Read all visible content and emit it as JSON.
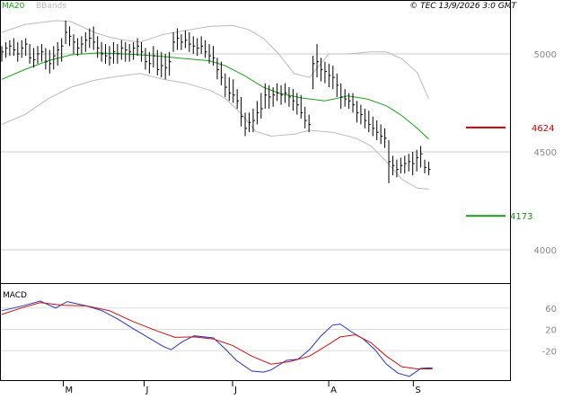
{
  "header": {
    "legend_ma": "MA20",
    "legend_bb": "BBands",
    "copyright": "© TEC 13/9/2026 3:0 GMT"
  },
  "macd_panel": {
    "label": "MACD"
  },
  "levels": [
    {
      "label": "4624",
      "value": 4624,
      "color": "#cc0000"
    },
    {
      "label": "4173",
      "value": 4173,
      "color": "#1a9a1a"
    }
  ],
  "chart_data": [
    {
      "type": "line",
      "panel": "price",
      "ylim": [
        3830,
        5220
      ],
      "yticks": [
        4000,
        4500,
        5000
      ],
      "ytick_labels": [
        "4000",
        "4500",
        "5000"
      ],
      "xlim": [
        0,
        120
      ],
      "xticks": [
        16,
        37,
        60,
        85,
        107
      ],
      "xtick_labels": [
        "M",
        "J",
        "J",
        "A",
        "S"
      ],
      "ohlc": [
        {
          "h": 5040,
          "l": 4960,
          "c": 5010
        },
        {
          "h": 5060,
          "l": 4980,
          "c": 5030
        },
        {
          "h": 5070,
          "l": 4990,
          "c": 5040
        },
        {
          "h": 5080,
          "l": 4990,
          "c": 5020
        },
        {
          "h": 5060,
          "l": 4960,
          "c": 5000
        },
        {
          "h": 5070,
          "l": 4980,
          "c": 5030
        },
        {
          "h": 5080,
          "l": 4990,
          "c": 5050
        },
        {
          "h": 5050,
          "l": 4950,
          "c": 4980
        },
        {
          "h": 5030,
          "l": 4930,
          "c": 4970
        },
        {
          "h": 5040,
          "l": 4950,
          "c": 5000
        },
        {
          "h": 5050,
          "l": 4960,
          "c": 5010
        },
        {
          "h": 5030,
          "l": 4920,
          "c": 4960
        },
        {
          "h": 5020,
          "l": 4900,
          "c": 4950
        },
        {
          "h": 5040,
          "l": 4920,
          "c": 4990
        },
        {
          "h": 5060,
          "l": 4940,
          "c": 5020
        },
        {
          "h": 5080,
          "l": 4960,
          "c": 5040
        },
        {
          "h": 5170,
          "l": 5050,
          "c": 5110
        },
        {
          "h": 5140,
          "l": 5040,
          "c": 5090
        },
        {
          "h": 5100,
          "l": 5000,
          "c": 5060
        },
        {
          "h": 5080,
          "l": 4990,
          "c": 5030
        },
        {
          "h": 5090,
          "l": 5000,
          "c": 5050
        },
        {
          "h": 5110,
          "l": 5010,
          "c": 5070
        },
        {
          "h": 5130,
          "l": 5030,
          "c": 5080
        },
        {
          "h": 5140,
          "l": 5020,
          "c": 5060
        },
        {
          "h": 5090,
          "l": 4980,
          "c": 5030
        },
        {
          "h": 5060,
          "l": 4960,
          "c": 5000
        },
        {
          "h": 5050,
          "l": 4950,
          "c": 4990
        },
        {
          "h": 5040,
          "l": 4940,
          "c": 4980
        },
        {
          "h": 5060,
          "l": 4950,
          "c": 5010
        },
        {
          "h": 5050,
          "l": 4950,
          "c": 5000
        },
        {
          "h": 5070,
          "l": 4970,
          "c": 5030
        },
        {
          "h": 5060,
          "l": 4960,
          "c": 5020
        },
        {
          "h": 5050,
          "l": 4960,
          "c": 5010
        },
        {
          "h": 5060,
          "l": 4970,
          "c": 5030
        },
        {
          "h": 5080,
          "l": 4990,
          "c": 5040
        },
        {
          "h": 5060,
          "l": 4960,
          "c": 5010
        },
        {
          "h": 5030,
          "l": 4920,
          "c": 4960
        },
        {
          "h": 5010,
          "l": 4900,
          "c": 4950
        },
        {
          "h": 5040,
          "l": 4930,
          "c": 4990
        },
        {
          "h": 5020,
          "l": 4890,
          "c": 4920
        },
        {
          "h": 5010,
          "l": 4880,
          "c": 4940
        },
        {
          "h": 5000,
          "l": 4870,
          "c": 4930
        },
        {
          "h": 5010,
          "l": 4890,
          "c": 4960
        },
        {
          "h": 5110,
          "l": 5010,
          "c": 5060
        },
        {
          "h": 5130,
          "l": 5020,
          "c": 5080
        },
        {
          "h": 5100,
          "l": 5020,
          "c": 5060
        },
        {
          "h": 5120,
          "l": 5030,
          "c": 5070
        },
        {
          "h": 5110,
          "l": 5010,
          "c": 5050
        },
        {
          "h": 5090,
          "l": 5000,
          "c": 5040
        },
        {
          "h": 5080,
          "l": 4990,
          "c": 5030
        },
        {
          "h": 5090,
          "l": 5000,
          "c": 5040
        },
        {
          "h": 5070,
          "l": 4980,
          "c": 5010
        },
        {
          "h": 5050,
          "l": 4950,
          "c": 4990
        },
        {
          "h": 5040,
          "l": 4940,
          "c": 4980
        },
        {
          "h": 4980,
          "l": 4870,
          "c": 4920
        },
        {
          "h": 4960,
          "l": 4840,
          "c": 4880
        },
        {
          "h": 4900,
          "l": 4780,
          "c": 4830
        },
        {
          "h": 4880,
          "l": 4760,
          "c": 4800
        },
        {
          "h": 4870,
          "l": 4750,
          "c": 4790
        },
        {
          "h": 4820,
          "l": 4720,
          "c": 4760
        },
        {
          "h": 4780,
          "l": 4630,
          "c": 4680
        },
        {
          "h": 4700,
          "l": 4580,
          "c": 4620
        },
        {
          "h": 4700,
          "l": 4600,
          "c": 4650
        },
        {
          "h": 4720,
          "l": 4600,
          "c": 4660
        },
        {
          "h": 4760,
          "l": 4640,
          "c": 4700
        },
        {
          "h": 4800,
          "l": 4670,
          "c": 4720
        },
        {
          "h": 4850,
          "l": 4720,
          "c": 4790
        },
        {
          "h": 4840,
          "l": 4720,
          "c": 4780
        },
        {
          "h": 4830,
          "l": 4730,
          "c": 4790
        },
        {
          "h": 4850,
          "l": 4760,
          "c": 4800
        },
        {
          "h": 4840,
          "l": 4740,
          "c": 4790
        },
        {
          "h": 4850,
          "l": 4750,
          "c": 4800
        },
        {
          "h": 4830,
          "l": 4730,
          "c": 4780
        },
        {
          "h": 4820,
          "l": 4710,
          "c": 4760
        },
        {
          "h": 4800,
          "l": 4690,
          "c": 4740
        },
        {
          "h": 4790,
          "l": 4670,
          "c": 4700
        },
        {
          "h": 4730,
          "l": 4620,
          "c": 4660
        },
        {
          "h": 4690,
          "l": 4600,
          "c": 4640
        },
        {
          "h": 4990,
          "l": 4820,
          "c": 4950
        },
        {
          "h": 5050,
          "l": 4880,
          "c": 4960
        },
        {
          "h": 4980,
          "l": 4860,
          "c": 4920
        },
        {
          "h": 4960,
          "l": 4850,
          "c": 4910
        },
        {
          "h": 4950,
          "l": 4830,
          "c": 4890
        },
        {
          "h": 4940,
          "l": 4820,
          "c": 4880
        },
        {
          "h": 4900,
          "l": 4780,
          "c": 4840
        },
        {
          "h": 4850,
          "l": 4720,
          "c": 4780
        },
        {
          "h": 4820,
          "l": 4730,
          "c": 4770
        },
        {
          "h": 4800,
          "l": 4720,
          "c": 4760
        },
        {
          "h": 4800,
          "l": 4700,
          "c": 4740
        },
        {
          "h": 4760,
          "l": 4650,
          "c": 4700
        },
        {
          "h": 4740,
          "l": 4640,
          "c": 4690
        },
        {
          "h": 4720,
          "l": 4620,
          "c": 4660
        },
        {
          "h": 4710,
          "l": 4600,
          "c": 4640
        },
        {
          "h": 4680,
          "l": 4580,
          "c": 4620
        },
        {
          "h": 4660,
          "l": 4560,
          "c": 4600
        },
        {
          "h": 4640,
          "l": 4540,
          "c": 4580
        },
        {
          "h": 4620,
          "l": 4520,
          "c": 4570
        },
        {
          "h": 4560,
          "l": 4340,
          "c": 4450
        },
        {
          "h": 4480,
          "l": 4380,
          "c": 4430
        },
        {
          "h": 4460,
          "l": 4370,
          "c": 4410
        },
        {
          "h": 4470,
          "l": 4390,
          "c": 4430
        },
        {
          "h": 4480,
          "l": 4390,
          "c": 4440
        },
        {
          "h": 4490,
          "l": 4400,
          "c": 4450
        },
        {
          "h": 4500,
          "l": 4380,
          "c": 4440
        },
        {
          "h": 4510,
          "l": 4400,
          "c": 4470
        },
        {
          "h": 4530,
          "l": 4420,
          "c": 4490
        },
        {
          "h": 4460,
          "l": 4390,
          "c": 4420
        },
        {
          "h": 4450,
          "l": 4380,
          "c": 4410
        }
      ],
      "overlays": [
        {
          "role": "ma20",
          "color": "#1aa31a",
          "points": [
            [
              0,
              4870
            ],
            [
              6,
              4920
            ],
            [
              12,
              4965
            ],
            [
              18,
              4995
            ],
            [
              25,
              5005
            ],
            [
              32,
              5000
            ],
            [
              40,
              4990
            ],
            [
              48,
              4975
            ],
            [
              54,
              4965
            ],
            [
              58,
              4940
            ],
            [
              63,
              4890
            ],
            [
              68,
              4830
            ],
            [
              72,
              4800
            ],
            [
              78,
              4775
            ],
            [
              84,
              4760
            ],
            [
              90,
              4785
            ],
            [
              95,
              4770
            ],
            [
              100,
              4735
            ],
            [
              104,
              4685
            ],
            [
              108,
              4620
            ],
            [
              111,
              4565
            ]
          ]
        },
        {
          "role": "bb-upper",
          "color": "#bbbbbb",
          "points": [
            [
              0,
              5110
            ],
            [
              6,
              5150
            ],
            [
              10,
              5160
            ],
            [
              14,
              5170
            ],
            [
              18,
              5165
            ],
            [
              24,
              5110
            ],
            [
              28,
              5085
            ],
            [
              32,
              5070
            ],
            [
              36,
              5060
            ],
            [
              42,
              5100
            ],
            [
              48,
              5120
            ],
            [
              54,
              5140
            ],
            [
              60,
              5145
            ],
            [
              64,
              5125
            ],
            [
              68,
              5080
            ],
            [
              72,
              5000
            ],
            [
              76,
              4900
            ],
            [
              80,
              4880
            ],
            [
              85,
              5000
            ],
            [
              90,
              5000
            ],
            [
              96,
              5010
            ],
            [
              100,
              5010
            ],
            [
              104,
              4975
            ],
            [
              108,
              4905
            ],
            [
              111,
              4770
            ]
          ]
        },
        {
          "role": "bb-lower",
          "color": "#bbbbbb",
          "points": [
            [
              0,
              4640
            ],
            [
              6,
              4690
            ],
            [
              12,
              4770
            ],
            [
              18,
              4830
            ],
            [
              24,
              4865
            ],
            [
              30,
              4885
            ],
            [
              36,
              4900
            ],
            [
              42,
              4870
            ],
            [
              48,
              4850
            ],
            [
              54,
              4815
            ],
            [
              58,
              4775
            ],
            [
              62,
              4700
            ],
            [
              66,
              4605
            ],
            [
              70,
              4580
            ],
            [
              76,
              4590
            ],
            [
              80,
              4610
            ],
            [
              86,
              4600
            ],
            [
              92,
              4570
            ],
            [
              96,
              4530
            ],
            [
              100,
              4450
            ],
            [
              104,
              4360
            ],
            [
              108,
              4315
            ],
            [
              111,
              4310
            ]
          ]
        }
      ]
    },
    {
      "type": "line",
      "panel": "macd",
      "ylim": [
        -75,
        105
      ],
      "yticks": [
        60,
        20,
        -20
      ],
      "ytick_labels": [
        "60",
        "20",
        "-20"
      ],
      "series": [
        {
          "role": "macd",
          "color": "#2233cc",
          "points": [
            [
              0,
              55
            ],
            [
              6,
              65
            ],
            [
              10,
              73
            ],
            [
              14,
              60
            ],
            [
              17,
              72
            ],
            [
              22,
              64
            ],
            [
              26,
              55
            ],
            [
              30,
              40
            ],
            [
              34,
              22
            ],
            [
              38,
              5
            ],
            [
              42,
              -12
            ],
            [
              44,
              -18
            ],
            [
              47,
              -3
            ],
            [
              50,
              8
            ],
            [
              55,
              4
            ],
            [
              58,
              -16
            ],
            [
              61,
              -38
            ],
            [
              65,
              -58
            ],
            [
              68,
              -60
            ],
            [
              70,
              -56
            ],
            [
              74,
              -38
            ],
            [
              77,
              -36
            ],
            [
              80,
              -18
            ],
            [
              83,
              8
            ],
            [
              86,
              28
            ],
            [
              88,
              30
            ],
            [
              91,
              15
            ],
            [
              94,
              2
            ],
            [
              97,
              -18
            ],
            [
              100,
              -45
            ],
            [
              103,
              -62
            ],
            [
              106,
              -68
            ],
            [
              109,
              -53
            ],
            [
              112,
              -52
            ]
          ]
        },
        {
          "role": "signal",
          "color": "#cc1111",
          "points": [
            [
              0,
              48
            ],
            [
              5,
              60
            ],
            [
              10,
              70
            ],
            [
              16,
              65
            ],
            [
              22,
              64
            ],
            [
              28,
              55
            ],
            [
              34,
              35
            ],
            [
              40,
              18
            ],
            [
              45,
              5
            ],
            [
              50,
              6
            ],
            [
              55,
              2
            ],
            [
              60,
              -10
            ],
            [
              65,
              -30
            ],
            [
              70,
              -45
            ],
            [
              75,
              -40
            ],
            [
              80,
              -30
            ],
            [
              85,
              -8
            ],
            [
              88,
              6
            ],
            [
              92,
              10
            ],
            [
              96,
              -5
            ],
            [
              100,
              -30
            ],
            [
              104,
              -50
            ],
            [
              108,
              -54
            ],
            [
              112,
              -54
            ]
          ]
        }
      ]
    }
  ]
}
